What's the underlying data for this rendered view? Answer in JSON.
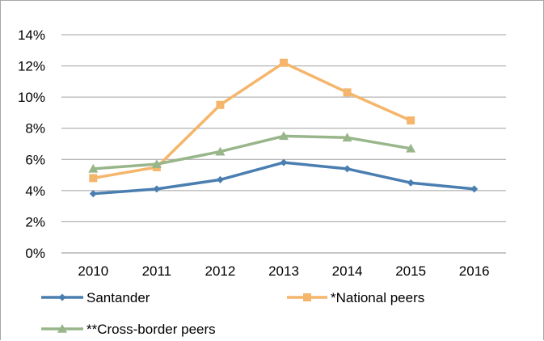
{
  "chart_data": {
    "type": "line",
    "x": [
      "2010",
      "2011",
      "2012",
      "2013",
      "2014",
      "2015",
      "2016"
    ],
    "ylim": [
      0,
      14
    ],
    "y_ticks": [
      "0%",
      "2%",
      "4%",
      "6%",
      "8%",
      "10%",
      "12%",
      "14%"
    ],
    "y_tick_values": [
      0,
      2,
      4,
      6,
      8,
      10,
      12,
      14
    ],
    "grid": true,
    "legend_position": "bottom",
    "series": [
      {
        "name": "Santander",
        "color": "#4a7eb0",
        "marker": "diamond",
        "values": [
          3.8,
          4.1,
          4.7,
          5.8,
          5.4,
          4.5,
          4.1
        ]
      },
      {
        "name": "*National peers",
        "color": "#f5b66b",
        "marker": "square",
        "values": [
          4.8,
          5.5,
          9.5,
          12.2,
          10.3,
          8.5,
          null
        ]
      },
      {
        "name": "**Cross-border peers",
        "color": "#98b68a",
        "marker": "triangle",
        "values": [
          5.4,
          5.7,
          6.5,
          7.5,
          7.4,
          6.7,
          null
        ]
      }
    ]
  }
}
